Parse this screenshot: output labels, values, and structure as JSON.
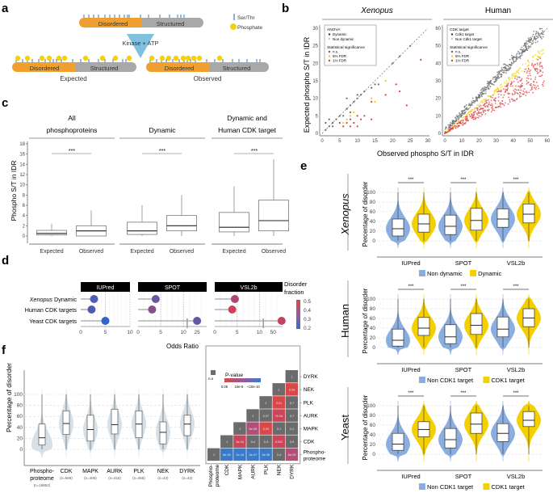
{
  "panel_labels": {
    "a": "a",
    "b": "b",
    "c": "c",
    "d": "d",
    "e": "e",
    "f": "f"
  },
  "colors": {
    "disordered": "#f0a030",
    "structured": "#a8a8a8",
    "site": "#3a7bbf",
    "phosphate": "#f5d10a",
    "kinase": "#7fc0e0",
    "nondynamic": "#8aaee0",
    "dynamic": "#f5d000",
    "gray_point": "#6a6a6a",
    "fdr5": "#f5d000",
    "fdr1": "#d94040",
    "violin_f": "#d6e0e6",
    "strip": "#9a9a9a"
  },
  "panel_a": {
    "legend": {
      "site": "Ser/Thr",
      "phosphate": "Phosphate"
    },
    "top": {
      "disordered": "Disordered",
      "structured": "Structured"
    },
    "arrow_label": "Kinase + ATP",
    "expected": {
      "disordered": "Disordered",
      "structured": "Structured",
      "caption": "Expected"
    },
    "observed": {
      "disordered": "Disordered",
      "structured": "Structured",
      "caption": "Observed"
    }
  },
  "chart_data": [
    {
      "id": "b",
      "type": "scatter",
      "xlabel": "Observed phospho S/T in IDR",
      "ylabel": "Expected phospho S/T in IDR",
      "facets": [
        {
          "title": "Xenopus",
          "italic": true,
          "xlim": [
            0,
            30
          ],
          "ylim": [
            0,
            30
          ],
          "xticks": [
            0,
            5,
            10,
            15,
            20,
            25,
            30
          ],
          "yticks": [
            0,
            5,
            10,
            15,
            20,
            25,
            30
          ],
          "legend": {
            "title1": "ANOVA",
            "items1": [
              "Dynamic",
              "Non dynamic"
            ],
            "title2": "Statistical significance",
            "items2": [
              "n.s.",
              "5% FDR",
              "1% FDR"
            ]
          },
          "points_sig1": [
            [
              8,
              2
            ],
            [
              9,
              3
            ],
            [
              10,
              5
            ],
            [
              12,
              5
            ],
            [
              14,
              4
            ],
            [
              14,
              9
            ],
            [
              18,
              11
            ],
            [
              21,
              14
            ],
            [
              22,
              12
            ],
            [
              24,
              8
            ],
            [
              28,
              21
            ],
            [
              7,
              3
            ],
            [
              8,
              4
            ],
            [
              6,
              2
            ],
            [
              10,
              2
            ],
            [
              11,
              4
            ]
          ],
          "points_sig5": [
            [
              6,
              3
            ],
            [
              7,
              4
            ],
            [
              8,
              5
            ],
            [
              9,
              6
            ],
            [
              14,
              10
            ],
            [
              15,
              9
            ],
            [
              18,
              15
            ]
          ],
          "points_ns": [
            [
              1,
              1
            ],
            [
              2,
              2
            ],
            [
              3,
              3
            ],
            [
              4,
              4
            ],
            [
              5,
              5
            ],
            [
              6,
              5
            ],
            [
              7,
              7
            ],
            [
              8,
              8
            ],
            [
              9,
              9
            ],
            [
              10,
              10
            ],
            [
              11,
              11
            ],
            [
              12,
              12
            ],
            [
              14,
              13
            ],
            [
              15,
              14
            ],
            [
              16,
              14
            ],
            [
              22,
              22
            ],
            [
              25,
              25
            ],
            [
              1,
              3
            ],
            [
              2,
              4
            ],
            [
              3,
              2
            ],
            [
              5,
              3
            ],
            [
              7,
              10
            ],
            [
              8,
              6
            ],
            [
              10,
              11
            ],
            [
              20,
              20
            ]
          ]
        },
        {
          "title": "Human",
          "italic": false,
          "xlim": [
            0,
            60
          ],
          "ylim": [
            0,
            60
          ],
          "xticks": [
            0,
            10,
            20,
            30,
            40,
            50,
            60
          ],
          "yticks": [
            0,
            10,
            20,
            30,
            40,
            50,
            60
          ],
          "legend": {
            "title1": "CDK target",
            "items1": [
              "Cdk1 target",
              "Non Cdk1 target"
            ],
            "title2": "Statistical significance",
            "items2": [
              "n.s.",
              "5% FDR",
              "1% FDR"
            ]
          }
        }
      ]
    },
    {
      "id": "c",
      "type": "box",
      "ylabel": "Phospho S/T in IDR",
      "ylim": [
        0,
        18
      ],
      "yticks": [
        0,
        2,
        4,
        6,
        8,
        10,
        12,
        14,
        16,
        18
      ],
      "facets": [
        {
          "title": [
            "All",
            "phosphoproteins"
          ],
          "sig": "***",
          "boxes": [
            {
              "label": "Expected",
              "min": 0,
              "q1": 0.2,
              "median": 0.5,
              "q3": 1.1,
              "max": 2.4
            },
            {
              "label": "Observed",
              "min": 0,
              "q1": 0,
              "median": 1,
              "q3": 2,
              "max": 5
            }
          ]
        },
        {
          "title": [
            "",
            "Dynamic"
          ],
          "sig": "***",
          "boxes": [
            {
              "label": "Expected",
              "min": 0,
              "q1": 0.3,
              "median": 1,
              "q3": 2.7,
              "max": 6
            },
            {
              "label": "Observed",
              "min": 0,
              "q1": 1,
              "median": 2,
              "q3": 4,
              "max": 8
            }
          ]
        },
        {
          "title": [
            "Dynamic and",
            "Human CDK target"
          ],
          "sig": "***",
          "boxes": [
            {
              "label": "Expected",
              "min": 0,
              "q1": 0.8,
              "median": 1.7,
              "q3": 4.6,
              "max": 9.7
            },
            {
              "label": "Observed",
              "min": 0,
              "q1": 1,
              "median": 3,
              "q3": 7,
              "max": 15
            }
          ]
        }
      ]
    },
    {
      "id": "d",
      "type": "lollipop",
      "xlabel": "Odds Ratio",
      "categories": [
        "Xenopus Dynamic",
        "Human CDK targets",
        "Yeast CDK targets"
      ],
      "category_italic_prefix": [
        "Xenopus",
        "",
        ""
      ],
      "legend": {
        "title": [
          "Disorder",
          "fraction"
        ],
        "ticks": [
          0.5,
          0.4,
          0.3,
          0.2
        ]
      },
      "facets": [
        {
          "title": "IUPred",
          "xticks": [
            "0",
            "5",
            "10"
          ],
          "values": [
            2.7,
            2.2,
            5.0
          ],
          "fraction": [
            0.25,
            0.25,
            0.2
          ]
        },
        {
          "title": "SPOT",
          "xticks": [
            "0",
            "5",
            "10",
            "25"
          ],
          "values": [
            3.9,
            3.1,
            25
          ],
          "fraction": [
            0.3,
            0.35,
            0.28
          ]
        },
        {
          "title": "VSL2b",
          "xticks": [
            "0",
            "5",
            "10",
            "50"
          ],
          "values": [
            4.5,
            3.9,
            60
          ],
          "fraction": [
            0.42,
            0.48,
            0.45
          ]
        }
      ]
    },
    {
      "id": "e",
      "type": "violin",
      "ylabel": "Percentage of disorder",
      "yticks": [
        0,
        20,
        40,
        60,
        80,
        100
      ],
      "categories": [
        "IUPred",
        "SPOT",
        "VSL2b"
      ],
      "rows": [
        {
          "species": "Xenopus",
          "italic": true,
          "legend": [
            "Non dynamic",
            "Dynamic"
          ],
          "boxes": [
            [
              10,
              25,
              45
            ],
            [
              18,
              35,
              55
            ],
            [
              13,
              30,
              53
            ],
            [
              22,
              42,
              67
            ],
            [
              28,
              45,
              66
            ],
            [
              37,
              55,
              76
            ]
          ]
        },
        {
          "species": "Human",
          "italic": false,
          "legend": [
            "Non CDK1 target",
            "CDK1 target"
          ],
          "boxes": [
            [
              3,
              15,
              38
            ],
            [
              25,
              40,
              62
            ],
            [
              8,
              22,
              47
            ],
            [
              27,
              46,
              70
            ],
            [
              22,
              38,
              63
            ],
            [
              43,
              61,
              80
            ]
          ]
        },
        {
          "species": "Yeast",
          "italic": false,
          "legend": [
            "Non CDK1 target",
            "CDK1 target"
          ],
          "boxes": [
            [
              8,
              21,
              43
            ],
            [
              36,
              51,
              67
            ],
            [
              13,
              30,
              53
            ],
            [
              43,
              62,
              85
            ],
            [
              26,
              43,
              63
            ],
            [
              57,
              70,
              88
            ]
          ]
        }
      ],
      "sig": "***"
    },
    {
      "id": "f",
      "type": "violin",
      "ylabel": "Percentage of disorder",
      "yticks": [
        0,
        20,
        40,
        60,
        80,
        100
      ],
      "categories": [
        {
          "label": [
            "Phospho-",
            "proteome"
          ],
          "n": "(n=16852)",
          "q1": 8,
          "median": 21,
          "q3": 46
        },
        {
          "label": [
            "CDK"
          ],
          "n": "(n=656)",
          "q1": 27,
          "median": 47,
          "q3": 70
        },
        {
          "label": [
            "MAPK"
          ],
          "n": "(n=408)",
          "q1": 15,
          "median": 36,
          "q3": 62
        },
        {
          "label": [
            "AURK"
          ],
          "n": "(n=415)",
          "q1": 28,
          "median": 45,
          "q3": 73
        },
        {
          "label": [
            "PLK"
          ],
          "n": "(n=465)",
          "q1": 21,
          "median": 46,
          "q3": 70
        },
        {
          "label": [
            "NEK"
          ],
          "n": "(n=43)",
          "q1": 10,
          "median": 31,
          "q3": 50
        },
        {
          "label": [
            "DYRK"
          ],
          "n": "(n=42)",
          "q1": 25,
          "median": 46,
          "q3": 62
        }
      ]
    },
    {
      "id": "f-heatmap",
      "type": "heatmap",
      "legend": {
        "ns": "n.s",
        "title": "P-value",
        "ticks": [
          "0.05",
          "10e-5",
          "<10e-10"
        ]
      },
      "labels": [
        "Phospho-proteome",
        "CDK",
        "MAPK",
        "AURK",
        "PLK",
        "NEK",
        "DYRK"
      ],
      "row_labels": [
        "DYRK",
        "NEK",
        "PLK",
        "AURK",
        "MAPK",
        "CDK",
        [
          "Phospho-",
          "proteome"
        ]
      ],
      "col_labels": [
        [
          "Phospho-",
          "proteome"
        ],
        "CDK",
        "MAPK",
        "AURK",
        "PLK",
        "NEK",
        "DYRK"
      ],
      "cells": [
        [
          "1",
          "8e-92",
          "1e-16",
          "3e-47",
          "5e-35",
          "0.4",
          "6e-05"
        ],
        [
          null,
          "1",
          "3e-04",
          "0.4",
          "0.3",
          "0.002",
          "0.9"
        ],
        [
          null,
          null,
          "1",
          "6e-05",
          "0.03",
          "0.1",
          "0.2"
        ],
        [
          null,
          null,
          null,
          "1",
          "0.07",
          "7e-04",
          "0.7"
        ],
        [
          null,
          null,
          null,
          null,
          "1",
          "0.01",
          "0.7"
        ],
        [
          null,
          null,
          null,
          null,
          null,
          "1",
          "0.03"
        ],
        [
          null,
          null,
          null,
          null,
          null,
          null,
          "1"
        ]
      ],
      "cell_class": [
        [
          "ns",
          "blue",
          "blue",
          "blue",
          "blue",
          "ns",
          "mag"
        ],
        [
          null,
          "ns",
          "red2",
          "ns",
          "ns",
          "red2",
          "ns"
        ],
        [
          null,
          null,
          "ns",
          "mag",
          "red",
          "ns",
          "ns"
        ],
        [
          null,
          null,
          null,
          "ns",
          "ns",
          "red2",
          "ns"
        ],
        [
          null,
          null,
          null,
          null,
          "ns",
          "red",
          "ns"
        ],
        [
          null,
          null,
          null,
          null,
          null,
          "ns",
          "red"
        ],
        [
          null,
          null,
          null,
          null,
          null,
          null,
          "ns"
        ]
      ]
    }
  ]
}
